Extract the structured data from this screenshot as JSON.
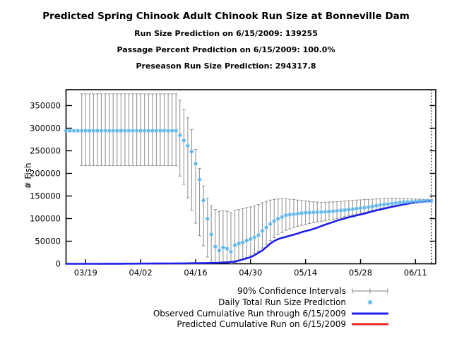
{
  "header": {
    "title": "Predicted Spring Chinook Adult Chinook Run Size at Bonneville Dam",
    "subtitle1": "Run Size Prediction on 6/15/2009: 139255",
    "subtitle2": "Passage Percent Prediction on 6/15/2009: 100.0%",
    "subtitle3": "Preseason Run Size Prediction: 294317.8"
  },
  "key_values": {
    "run_size_prediction_6_15_2009": 139255,
    "passage_percent_prediction_6_15_2009": "100.0%",
    "preseason_run_size_prediction": 294317.8
  },
  "legend": [
    {
      "label": "90% Confidence Intervals",
      "swatch": "errorbar",
      "color": "#969696"
    },
    {
      "label": "Daily Total Run Size Prediction",
      "swatch": "asterisk",
      "color": "#5AB4EC"
    },
    {
      "label": "Observed Cumulative Run through 6/15/2009",
      "swatch": "line",
      "color": "#1E1EE6"
    },
    {
      "label": "Predicted Cumulative Run on 6/15/2009",
      "swatch": "line",
      "color": "#EE2929"
    }
  ],
  "chart_data": {
    "type": "line",
    "title": "Predicted Spring Chinook Adult Chinook Run Size at Bonneville Dam",
    "xlabel": "",
    "ylabel": "# Fish",
    "ylim": [
      0,
      385000
    ],
    "y_ticks": [
      0,
      50000,
      100000,
      150000,
      200000,
      250000,
      300000,
      350000
    ],
    "grid": false,
    "legend_position": "below-right",
    "x_start_date": "3/14/2009",
    "x_days_total": 94,
    "x_ticks": [
      {
        "label": "03/19",
        "day": 5
      },
      {
        "label": "04/02",
        "day": 19
      },
      {
        "label": "04/16",
        "day": 33
      },
      {
        "label": "04/30",
        "day": 47
      },
      {
        "label": "05/14",
        "day": 61
      },
      {
        "label": "05/28",
        "day": 75
      },
      {
        "label": "06/11",
        "day": 89
      }
    ],
    "vline": {
      "day": 93,
      "date": "6/15/2009",
      "style": "dotted",
      "color": "#000000"
    },
    "series": [
      {
        "name": "Daily Total Run Size Prediction",
        "marker": "asterisk",
        "color": "#5AB4EC",
        "start_day_index": 0,
        "values": [
          294318,
          294318,
          294318,
          294318,
          294318,
          294318,
          294318,
          294318,
          294318,
          294318,
          294318,
          294318,
          294318,
          294318,
          294318,
          294318,
          294318,
          294318,
          294318,
          294318,
          294318,
          294318,
          294318,
          294318,
          294318,
          294318,
          294318,
          294318,
          294318,
          284600,
          272800,
          261000,
          248200,
          221600,
          186700,
          140500,
          99500,
          65100,
          38000,
          29200,
          35800,
          33400,
          26600,
          41100,
          44600,
          47200,
          51200,
          54900,
          58500,
          63500,
          72800,
          80500,
          88200,
          94300,
          99500,
          103600,
          107700,
          108700,
          109700,
          110800,
          112000,
          113000,
          113500,
          114000,
          114200,
          114500,
          115000,
          115500,
          116200,
          117000,
          118000,
          119000,
          120000,
          121000,
          122000,
          123000,
          124200,
          125500,
          127000,
          128500,
          130000,
          131200,
          132400,
          133500,
          134500,
          135400,
          136200,
          136900,
          137500,
          138000,
          138400,
          138800,
          139100,
          139255
        ]
      },
      {
        "name": "90% Confidence Intervals",
        "type": "errorbars",
        "color": "#969696",
        "start_day_index": 0,
        "lower": [
          null,
          null,
          null,
          null,
          217000,
          217000,
          217000,
          217000,
          217000,
          217000,
          217000,
          217000,
          217000,
          217000,
          217000,
          217000,
          217000,
          217000,
          217000,
          217000,
          217000,
          217000,
          217000,
          217000,
          217000,
          217000,
          217000,
          217000,
          217000,
          194000,
          176000,
          146000,
          118000,
          90000,
          62000,
          40000,
          15000,
          6000,
          3000,
          1500,
          2000,
          1500,
          1000,
          3000,
          6000,
          10000,
          14000,
          18000,
          23000,
          28000,
          35000,
          43000,
          51000,
          58000,
          64000,
          69000,
          74000,
          77000,
          80000,
          83000,
          85000,
          87000,
          89000,
          91000,
          92500,
          94000,
          95500,
          97000,
          98500,
          100000,
          102000,
          104000,
          106000,
          108000,
          110000,
          112000,
          114000,
          116000,
          118000,
          120000,
          122000,
          124000,
          125500,
          127000,
          128500,
          130000,
          131500,
          132800,
          134000,
          135000,
          136000,
          136800,
          137500,
          138000
        ],
        "upper": [
          null,
          null,
          null,
          null,
          376000,
          376000,
          376000,
          376000,
          376000,
          376000,
          376000,
          376000,
          376000,
          376000,
          376000,
          376000,
          376000,
          376000,
          376000,
          376000,
          376000,
          376000,
          376000,
          376000,
          376000,
          376000,
          376000,
          376000,
          376000,
          362000,
          341000,
          323000,
          297000,
          253000,
          211000,
          172000,
          145000,
          128000,
          120000,
          116000,
          118000,
          116000,
          113000,
          118000,
          120000,
          122000,
          124000,
          126000,
          128000,
          131000,
          135000,
          138000,
          141000,
          142500,
          143500,
          144000,
          144000,
          143000,
          142000,
          141000,
          140000,
          139000,
          138000,
          137000,
          136500,
          136000,
          136200,
          136500,
          137000,
          137500,
          138000,
          138800,
          139500,
          140200,
          141000,
          141500,
          142000,
          142500,
          143000,
          143400,
          143800,
          144000,
          144200,
          144300,
          144300,
          144200,
          144000,
          143800,
          143500,
          143200,
          142800,
          142400,
          142000,
          141800
        ]
      },
      {
        "name": "Observed Cumulative Run through 6/15/2009",
        "type": "line",
        "color": "#1E1EE6",
        "start_day_index": 0,
        "values": [
          0,
          0,
          0,
          0,
          0,
          0,
          0,
          0,
          50,
          50,
          100,
          100,
          150,
          150,
          200,
          250,
          250,
          300,
          350,
          400,
          450,
          500,
          550,
          600,
          650,
          700,
          750,
          800,
          900,
          950,
          1000,
          1100,
          1200,
          1300,
          1400,
          1500,
          1700,
          1900,
          2100,
          2400,
          2800,
          3300,
          4000,
          5000,
          7000,
          9500,
          12000,
          14500,
          19000,
          24500,
          29500,
          37000,
          44500,
          50500,
          54500,
          57500,
          59500,
          62000,
          64500,
          67000,
          70000,
          72500,
          74500,
          77000,
          80000,
          83500,
          86500,
          89500,
          92500,
          95500,
          98000,
          100500,
          103000,
          105000,
          107000,
          109000,
          111000,
          113500,
          116000,
          118000,
          120000,
          122000,
          124000,
          126000,
          127800,
          129500,
          131200,
          132800,
          134300,
          135600,
          136800,
          137800,
          138600,
          139255
        ]
      },
      {
        "name": "Predicted Cumulative Run on 6/15/2009",
        "type": "line",
        "color": "#EE2929",
        "start_day_index": 89,
        "hidden_behind_observed": true,
        "values": [
          135600,
          136800,
          137800,
          138600,
          139255
        ]
      }
    ]
  }
}
